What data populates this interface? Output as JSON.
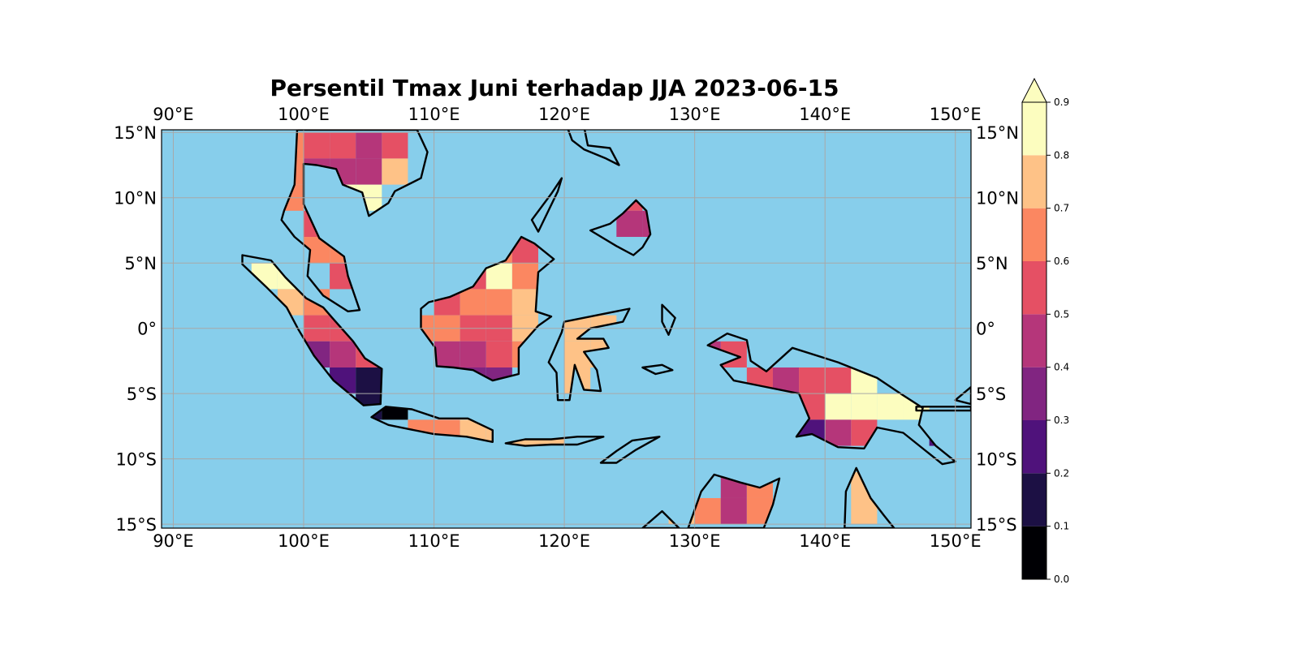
{
  "title": "Persentil Tmax Juni terhadap JJA 2023-06-15",
  "map": {
    "extent": {
      "lon": [
        89.1,
        151.2
      ],
      "lat": [
        -15.3,
        15.2
      ]
    },
    "ocean_color": "#87ceeb",
    "land_no_data_color": "#87ceeb",
    "gridlines": true,
    "lon_ticks": [
      90,
      100,
      110,
      120,
      130,
      140,
      150
    ],
    "lat_ticks": [
      15,
      10,
      5,
      0,
      -5,
      -10,
      -15
    ],
    "lon_labels": [
      "90°E",
      "100°E",
      "110°E",
      "120°E",
      "130°E",
      "140°E",
      "150°E"
    ],
    "lat_labels": [
      "15°N",
      "10°N",
      "5°N",
      "0°",
      "5°S",
      "10°S",
      "15°S"
    ]
  },
  "colorbar": {
    "colormap": "magma",
    "levels": [
      0.0,
      0.1,
      0.2,
      0.3,
      0.4,
      0.5,
      0.6,
      0.7,
      0.8,
      0.9
    ],
    "tick_labels": [
      "0.0",
      "0.1",
      "0.2",
      "0.3",
      "0.4",
      "0.5",
      "0.6",
      "0.7",
      "0.8",
      "0.9"
    ],
    "colors": [
      "#000004",
      "#1c1044",
      "#4f127b",
      "#812581",
      "#b5367a",
      "#e55064",
      "#fb8761",
      "#fec287",
      "#fcfdbf"
    ],
    "extend": "max"
  },
  "grid_cells": {
    "cell_deg": 2,
    "cells": [
      [
        99,
        14,
        0.65
      ],
      [
        101,
        14,
        0.55
      ],
      [
        103,
        14,
        0.55
      ],
      [
        105,
        14,
        0.45
      ],
      [
        107,
        14,
        0.55
      ],
      [
        99,
        12,
        0.65
      ],
      [
        101,
        12,
        0.45
      ],
      [
        103,
        12,
        0.45
      ],
      [
        105,
        12,
        0.45
      ],
      [
        107,
        12,
        0.75
      ],
      [
        99,
        10,
        0.65
      ],
      [
        103,
        10,
        0.85
      ],
      [
        105,
        10,
        0.85
      ],
      [
        101,
        8,
        0.55
      ],
      [
        101,
        6,
        0.65
      ],
      [
        103,
        6,
        0.65
      ],
      [
        103,
        4,
        0.55
      ],
      [
        105,
        4,
        0.65
      ],
      [
        97,
        4,
        0.95
      ],
      [
        99,
        4,
        0.95
      ],
      [
        99,
        2,
        0.75
      ],
      [
        101,
        2,
        0.65
      ],
      [
        101,
        0,
        0.55
      ],
      [
        103,
        0,
        0.55
      ],
      [
        101,
        -2,
        0.35
      ],
      [
        103,
        -2,
        0.45
      ],
      [
        105,
        -2,
        0.55
      ],
      [
        103,
        -4,
        0.25
      ],
      [
        105,
        -4,
        0.15
      ],
      [
        105,
        -6,
        0.15
      ],
      [
        107,
        -6,
        0.05
      ],
      [
        109,
        -8,
        0.65
      ],
      [
        111,
        -8,
        0.65
      ],
      [
        113,
        -8,
        0.75
      ],
      [
        115,
        -8,
        0.75
      ],
      [
        117,
        -8,
        0.75
      ],
      [
        119,
        -8,
        0.75
      ],
      [
        115,
        6,
        0.65
      ],
      [
        117,
        6,
        0.55
      ],
      [
        113,
        4,
        0.55
      ],
      [
        115,
        4,
        0.85
      ],
      [
        117,
        4,
        0.65
      ],
      [
        111,
        2,
        0.55
      ],
      [
        113,
        2,
        0.65
      ],
      [
        115,
        2,
        0.65
      ],
      [
        117,
        2,
        0.75
      ],
      [
        109,
        0,
        0.65
      ],
      [
        111,
        0,
        0.65
      ],
      [
        113,
        0,
        0.55
      ],
      [
        115,
        0,
        0.55
      ],
      [
        117,
        0,
        0.75
      ],
      [
        111,
        -2,
        0.45
      ],
      [
        113,
        -2,
        0.45
      ],
      [
        115,
        -2,
        0.55
      ],
      [
        117,
        -2,
        0.65
      ],
      [
        111,
        -4,
        0.35
      ],
      [
        113,
        -4,
        0.35
      ],
      [
        115,
        -4,
        0.35
      ],
      [
        121,
        -2,
        0.75
      ],
      [
        123,
        -2,
        0.75
      ],
      [
        121,
        0,
        0.75
      ],
      [
        123,
        0,
        0.75
      ],
      [
        121,
        -4,
        0.75
      ],
      [
        125,
        10,
        0.55
      ],
      [
        125,
        8,
        0.45
      ],
      [
        127,
        8,
        0.45
      ],
      [
        125,
        12,
        0.45
      ],
      [
        133,
        -2,
        0.55
      ],
      [
        131,
        -2,
        0.45
      ],
      [
        135,
        -4,
        0.55
      ],
      [
        137,
        -4,
        0.45
      ],
      [
        139,
        -4,
        0.55
      ],
      [
        141,
        -4,
        0.55
      ],
      [
        143,
        -4,
        0.85
      ],
      [
        139,
        -6,
        0.55
      ],
      [
        141,
        -6,
        0.85
      ],
      [
        143,
        -6,
        0.85
      ],
      [
        145,
        -6,
        0.95
      ],
      [
        147,
        -6,
        0.95
      ],
      [
        139,
        -8,
        0.25
      ],
      [
        141,
        -8,
        0.45
      ],
      [
        143,
        -8,
        0.55
      ],
      [
        149,
        -8,
        0.25
      ],
      [
        131,
        -14,
        0.65
      ],
      [
        133,
        -14,
        0.45
      ],
      [
        135,
        -14,
        0.65
      ],
      [
        133,
        -12,
        0.45
      ],
      [
        135,
        -12,
        0.65
      ],
      [
        129,
        -14,
        0.75
      ],
      [
        143,
        -14,
        0.75
      ],
      [
        143,
        -12,
        0.75
      ]
    ]
  },
  "coastlines": [
    [
      [
        95.3,
        5.6
      ],
      [
        97.5,
        5.2
      ],
      [
        98.6,
        3.9
      ],
      [
        100.2,
        2.3
      ],
      [
        101.5,
        1.6
      ],
      [
        102.2,
        0.8
      ],
      [
        103.8,
        -1.0
      ],
      [
        104.7,
        -2.3
      ],
      [
        106.0,
        -3.1
      ],
      [
        105.9,
        -5.8
      ],
      [
        104.6,
        -5.9
      ],
      [
        102.3,
        -4.0
      ],
      [
        100.8,
        -2.1
      ],
      [
        99.6,
        -0.1
      ],
      [
        98.7,
        1.6
      ],
      [
        97.1,
        3.2
      ],
      [
        95.3,
        4.9
      ],
      [
        95.3,
        5.6
      ]
    ],
    [
      [
        105.2,
        -6.8
      ],
      [
        106.3,
        -6.0
      ],
      [
        108.3,
        -6.2
      ],
      [
        110.4,
        -6.9
      ],
      [
        112.6,
        -6.9
      ],
      [
        114.5,
        -7.8
      ],
      [
        114.5,
        -8.7
      ],
      [
        112.5,
        -8.3
      ],
      [
        110.0,
        -8.1
      ],
      [
        108.0,
        -7.7
      ],
      [
        106.5,
        -7.4
      ],
      [
        105.2,
        -6.8
      ]
    ],
    [
      [
        109.0,
        1.5
      ],
      [
        109.6,
        2.0
      ],
      [
        111.2,
        2.4
      ],
      [
        113.0,
        3.2
      ],
      [
        114.0,
        4.6
      ],
      [
        115.5,
        5.2
      ],
      [
        116.7,
        7.0
      ],
      [
        117.7,
        6.5
      ],
      [
        119.2,
        5.3
      ],
      [
        118.0,
        4.3
      ],
      [
        117.8,
        1.3
      ],
      [
        119.0,
        0.9
      ],
      [
        118.0,
        0.2
      ],
      [
        116.5,
        -1.5
      ],
      [
        116.5,
        -3.5
      ],
      [
        114.5,
        -4.0
      ],
      [
        113.0,
        -3.2
      ],
      [
        111.5,
        -3.0
      ],
      [
        110.2,
        -2.9
      ],
      [
        110.1,
        -1.5
      ],
      [
        109.0,
        0.0
      ],
      [
        109.0,
        1.5
      ]
    ],
    [
      [
        120.0,
        0.5
      ],
      [
        122.5,
        1.0
      ],
      [
        125.0,
        1.5
      ],
      [
        124.5,
        0.5
      ],
      [
        122.0,
        0.0
      ],
      [
        121.0,
        -0.8
      ],
      [
        123.0,
        -0.8
      ],
      [
        123.4,
        -1.5
      ],
      [
        121.5,
        -1.8
      ],
      [
        122.5,
        -3.2
      ],
      [
        122.8,
        -4.8
      ],
      [
        121.5,
        -4.7
      ],
      [
        120.8,
        -2.8
      ],
      [
        120.4,
        -5.5
      ],
      [
        119.5,
        -5.5
      ],
      [
        119.4,
        -3.4
      ],
      [
        118.8,
        -2.6
      ],
      [
        119.8,
        -0.3
      ],
      [
        120.0,
        0.5
      ]
    ],
    [
      [
        131.0,
        -1.3
      ],
      [
        132.5,
        -0.4
      ],
      [
        134.0,
        -0.9
      ],
      [
        134.3,
        -2.5
      ],
      [
        135.5,
        -3.3
      ],
      [
        137.5,
        -1.5
      ],
      [
        141.0,
        -2.6
      ],
      [
        144.0,
        -3.8
      ],
      [
        145.8,
        -5.0
      ],
      [
        147.5,
        -6.1
      ],
      [
        147.2,
        -7.4
      ],
      [
        148.5,
        -9.0
      ],
      [
        150.0,
        -10.2
      ],
      [
        149.0,
        -10.4
      ],
      [
        146.0,
        -8.0
      ],
      [
        144.0,
        -7.6
      ],
      [
        143.0,
        -9.2
      ],
      [
        141.0,
        -9.1
      ],
      [
        139.0,
        -8.1
      ],
      [
        137.8,
        -8.3
      ],
      [
        138.8,
        -6.9
      ],
      [
        138.0,
        -5.0
      ],
      [
        135.0,
        -4.4
      ],
      [
        133.0,
        -4.0
      ],
      [
        132.0,
        -2.8
      ],
      [
        133.5,
        -2.2
      ],
      [
        131.0,
        -1.3
      ]
    ],
    [
      [
        99.5,
        15.2
      ],
      [
        99.3,
        11.0
      ],
      [
        98.5,
        9.0
      ],
      [
        98.3,
        8.3
      ],
      [
        99.3,
        7.0
      ],
      [
        100.5,
        6.0
      ],
      [
        100.3,
        4.0
      ],
      [
        101.5,
        2.5
      ],
      [
        103.4,
        1.3
      ],
      [
        104.3,
        1.4
      ],
      [
        103.4,
        4.0
      ],
      [
        103.1,
        5.5
      ],
      [
        101.2,
        6.9
      ],
      [
        100.0,
        9.5
      ],
      [
        100.0,
        12.6
      ],
      [
        101.0,
        12.5
      ],
      [
        102.5,
        12.2
      ],
      [
        103.0,
        11.0
      ],
      [
        104.5,
        10.4
      ],
      [
        105.0,
        8.6
      ],
      [
        106.5,
        9.6
      ],
      [
        107.0,
        10.5
      ],
      [
        109.0,
        11.5
      ],
      [
        109.5,
        13.5
      ],
      [
        108.7,
        15.2
      ],
      [
        99.5,
        15.2
      ]
    ],
    [
      [
        120.5,
        18.5
      ],
      [
        121.8,
        18.2
      ],
      [
        122.2,
        16.5
      ],
      [
        121.5,
        15.5
      ],
      [
        121.8,
        14.0
      ],
      [
        123.5,
        13.8
      ],
      [
        124.2,
        12.5
      ],
      [
        123.2,
        13.0
      ],
      [
        121.5,
        13.7
      ],
      [
        120.6,
        14.4
      ],
      [
        120.0,
        16.0
      ],
      [
        120.5,
        18.5
      ]
    ],
    [
      [
        122.0,
        7.5
      ],
      [
        123.5,
        8.0
      ],
      [
        124.5,
        8.8
      ],
      [
        125.5,
        9.8
      ],
      [
        126.3,
        9.0
      ],
      [
        126.6,
        7.2
      ],
      [
        126.0,
        6.2
      ],
      [
        125.3,
        5.6
      ],
      [
        124.0,
        6.3
      ],
      [
        122.0,
        7.5
      ]
    ],
    [
      [
        118.0,
        7.4
      ],
      [
        119.5,
        10.5
      ],
      [
        119.8,
        11.5
      ],
      [
        119.0,
        10.3
      ],
      [
        117.5,
        8.3
      ],
      [
        118.0,
        7.4
      ]
    ],
    [
      [
        122.8,
        -10.3
      ],
      [
        124.0,
        -9.4
      ],
      [
        125.2,
        -8.6
      ],
      [
        127.3,
        -8.3
      ],
      [
        125.5,
        -9.3
      ],
      [
        124.0,
        -10.3
      ],
      [
        122.8,
        -10.3
      ]
    ],
    [
      [
        123.0,
        -8.3
      ],
      [
        121.0,
        -8.3
      ],
      [
        119.0,
        -8.5
      ],
      [
        117.0,
        -8.5
      ],
      [
        115.5,
        -8.8
      ],
      [
        117.0,
        -9.0
      ],
      [
        119.0,
        -8.9
      ],
      [
        121.0,
        -8.9
      ],
      [
        123.0,
        -8.3
      ]
    ],
    [
      [
        126.0,
        -3.0
      ],
      [
        127.0,
        -3.5
      ],
      [
        128.3,
        -3.2
      ],
      [
        127.5,
        -2.8
      ],
      [
        126.0,
        -3.0
      ]
    ],
    [
      [
        127.5,
        1.8
      ],
      [
        128.5,
        0.8
      ],
      [
        128.0,
        -0.5
      ],
      [
        127.5,
        0.5
      ],
      [
        127.5,
        1.8
      ]
    ],
    [
      [
        129.5,
        -15.3
      ],
      [
        130.5,
        -12.5
      ],
      [
        131.5,
        -11.2
      ],
      [
        132.5,
        -11.5
      ],
      [
        133.5,
        -11.8
      ],
      [
        135.0,
        -12.2
      ],
      [
        136.5,
        -11.5
      ],
      [
        136.0,
        -13.5
      ],
      [
        135.3,
        -15.3
      ],
      [
        129.5,
        -15.3
      ]
    ],
    [
      [
        141.5,
        -15.3
      ],
      [
        141.6,
        -12.5
      ],
      [
        142.4,
        -10.7
      ],
      [
        143.5,
        -13.0
      ],
      [
        144.5,
        -14.3
      ],
      [
        145.3,
        -15.3
      ],
      [
        141.5,
        -15.3
      ]
    ],
    [
      [
        126.0,
        -15.3
      ],
      [
        127.5,
        -14.0
      ],
      [
        128.5,
        -15.0
      ],
      [
        128.8,
        -15.3
      ],
      [
        126.0,
        -15.3
      ]
    ],
    [
      [
        150.0,
        -5.5
      ],
      [
        151.2,
        -4.5
      ],
      [
        151.2,
        -5.8
      ],
      [
        150.0,
        -5.5
      ]
    ],
    [
      [
        147.0,
        -6.0
      ],
      [
        151.2,
        -6.0
      ],
      [
        151.2,
        -6.3
      ],
      [
        147.0,
        -6.3
      ]
    ]
  ]
}
